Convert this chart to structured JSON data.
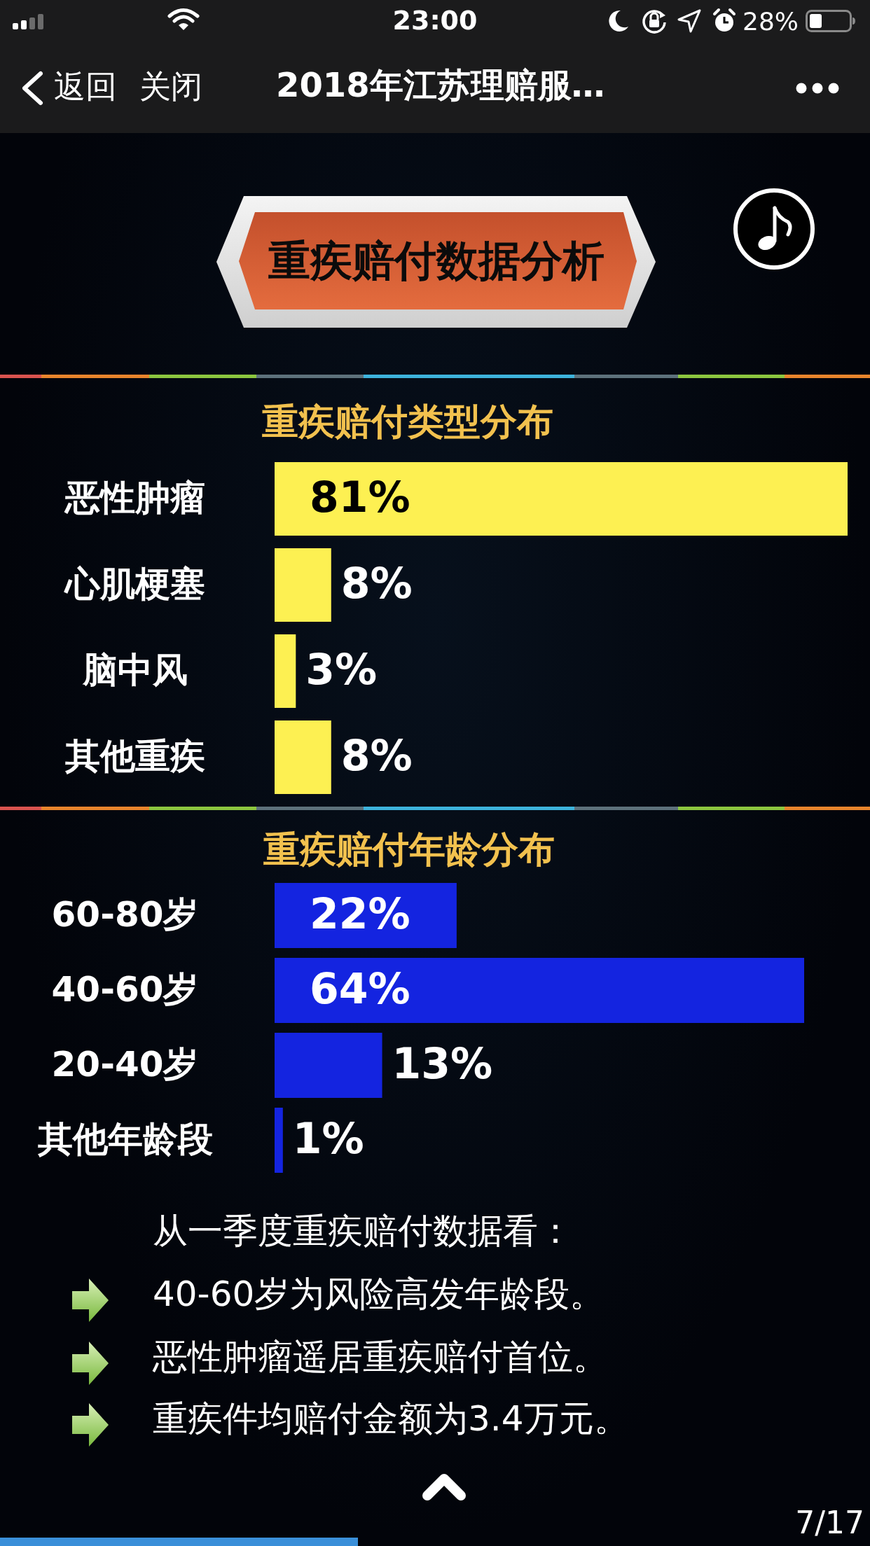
{
  "chart_data": [
    {
      "type": "other",
      "title": "重疾赔付数据分析",
      "annotations": [
        "23:00",
        "28%",
        "返回",
        "关闭",
        "2018年江苏理赔服…"
      ]
    },
    {
      "type": "bar",
      "orientation": "horizontal",
      "title": "重疾赔付类型分布",
      "categories": [
        "恶性肿瘤",
        "心肌梗塞",
        "脑中风",
        "其他重疾"
      ],
      "values": [
        81,
        8,
        3,
        8
      ],
      "value_labels": [
        "81%",
        "8%",
        "3%",
        "8%"
      ],
      "color": "#fdf052"
    },
    {
      "type": "bar",
      "orientation": "horizontal",
      "title": "重疾赔付年龄分布",
      "categories": [
        "60-80岁",
        "40-60岁",
        "20-40岁",
        "其他年龄段"
      ],
      "values": [
        22,
        64,
        13,
        1
      ],
      "value_labels": [
        "22%",
        "64%",
        "13%",
        "1%"
      ],
      "color": "#1424e0"
    },
    {
      "type": "other",
      "annotations": [
        "从一季度重疾赔付数据看：",
        "40-60岁为风险高发年龄段。",
        "恶性肿瘤遥居重疾赔付首位。",
        "重疾件均赔付金额为3.4万元。",
        "7/17"
      ]
    }
  ]
}
